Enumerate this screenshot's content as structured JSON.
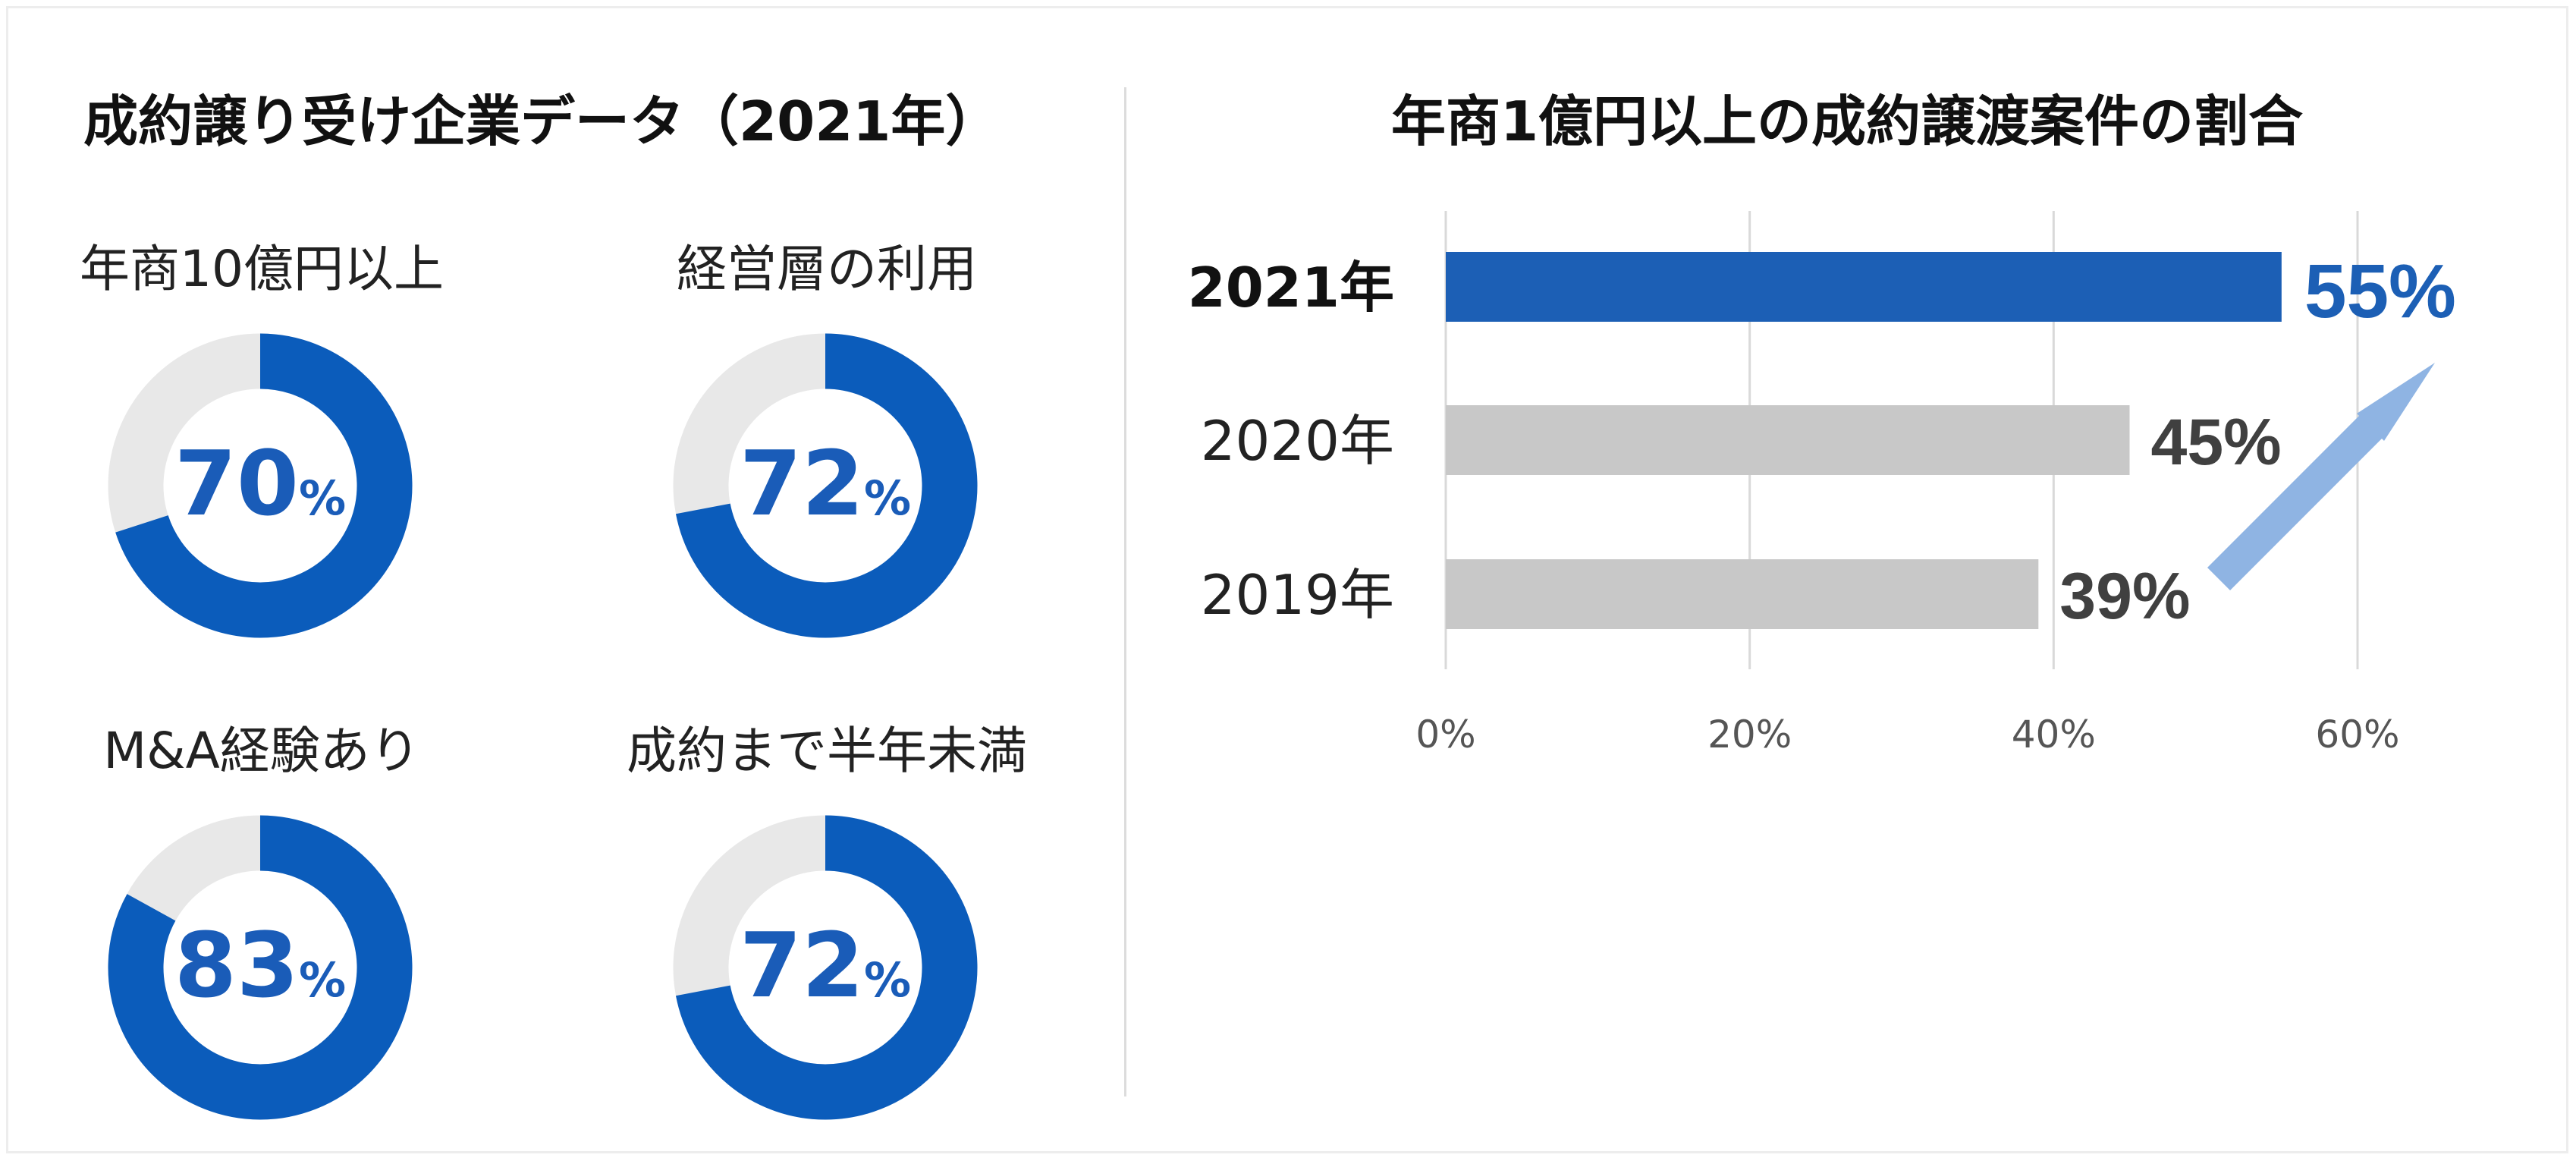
{
  "left_title": "成約譲り受け企業データ（2021年）",
  "right_title": "年商1億円以上の成約譲渡案件の割合",
  "colors": {
    "donut_fill": "#0b5cbb",
    "donut_track": "#e8e8e8",
    "highlight_bar": "#1c5fb5",
    "other_bar": "#c8c8c8",
    "highlight_text": "#1c5fb5",
    "other_text": "#404040",
    "arrow": "#8fb4e3",
    "grid": "#d9d9d9"
  },
  "donuts": [
    {
      "label": "年商10億円以上",
      "value": 70,
      "value_text": "70",
      "unit": "%"
    },
    {
      "label": "経営層の利用",
      "value": 72,
      "value_text": "72",
      "unit": "%"
    },
    {
      "label": "M&A経験あり",
      "value": 83,
      "value_text": "83",
      "unit": "%"
    },
    {
      "label": "成約まで半年未満",
      "value": 72,
      "value_text": "72",
      "unit": "%"
    }
  ],
  "chart_data": {
    "type": "bar",
    "orientation": "horizontal",
    "title": "年商1億円以上の成約譲渡案件の割合",
    "categories": [
      "2021年",
      "2020年",
      "2019年"
    ],
    "values": [
      55,
      45,
      39
    ],
    "value_labels": [
      "55%",
      "45%",
      "39%"
    ],
    "highlight_category": "2021年",
    "xlim": [
      0,
      60
    ],
    "xticks": [
      0,
      20,
      40,
      60
    ],
    "xtick_labels": [
      "0%",
      "20%",
      "40%",
      "60%"
    ],
    "grid": true,
    "xlabel": "",
    "ylabel": ""
  }
}
